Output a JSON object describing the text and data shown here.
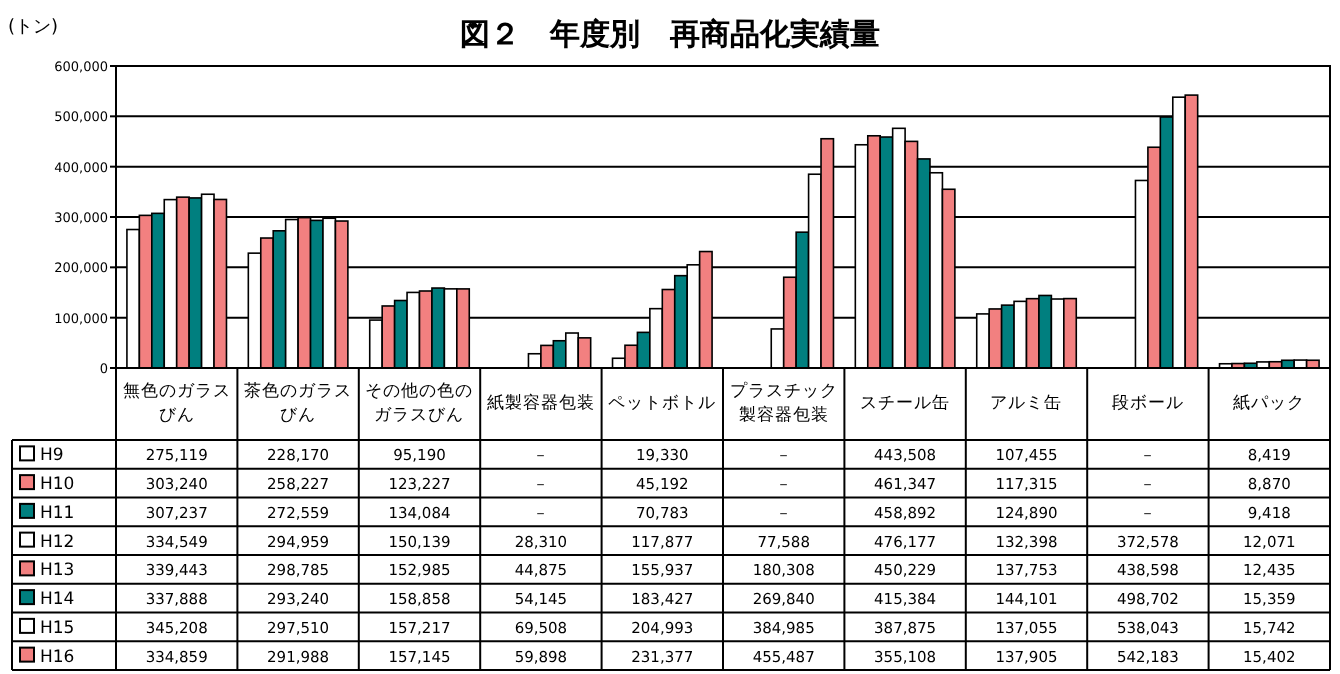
{
  "chart_data": {
    "type": "bar",
    "title": "図２　年度別　再商品化実績量",
    "ylabel": "(トン)",
    "categories": [
      "無色のガラスびん",
      "茶色のガラスびん",
      "その他の色のガラスびん",
      "紙製容器包装",
      "ペットボトル",
      "プラスチック製容器包装",
      "スチール缶",
      "アルミ缶",
      "段ボール",
      "紙パック"
    ],
    "ylim": [
      0,
      600000
    ],
    "yticks": [
      {
        "value": 0,
        "label": "0"
      },
      {
        "value": 100000,
        "label": "100,000"
      },
      {
        "value": 200000,
        "label": "200,000"
      },
      {
        "value": 300000,
        "label": "300,000"
      },
      {
        "value": 400000,
        "label": "400,000"
      },
      {
        "value": 500000,
        "label": "500,000"
      },
      {
        "value": 600000,
        "label": "600,000"
      }
    ],
    "grid": "y",
    "legend": "bottom",
    "series": [
      {
        "name": "H9",
        "color": "#ffffff",
        "values": [
          275119,
          228170,
          95190,
          null,
          19330,
          null,
          443508,
          107455,
          null,
          8419
        ],
        "value_labels": [
          "275,119",
          "228,170",
          "95,190",
          "－",
          "19,330",
          "－",
          "443,508",
          "107,455",
          "－",
          "8,419"
        ]
      },
      {
        "name": "H10",
        "color": "#f28080",
        "values": [
          303240,
          258227,
          123227,
          null,
          45192,
          null,
          461347,
          117315,
          null,
          8870
        ],
        "value_labels": [
          "303,240",
          "258,227",
          "123,227",
          "－",
          "45,192",
          "－",
          "461,347",
          "117,315",
          "－",
          "8,870"
        ]
      },
      {
        "name": "H11",
        "color": "#007f7f",
        "values": [
          307237,
          272559,
          134084,
          null,
          70783,
          null,
          458892,
          124890,
          null,
          9418
        ],
        "value_labels": [
          "307,237",
          "272,559",
          "134,084",
          "－",
          "70,783",
          "－",
          "458,892",
          "124,890",
          "－",
          "9,418"
        ]
      },
      {
        "name": "H12",
        "color": "#ffffff",
        "values": [
          334549,
          294959,
          150139,
          28310,
          117877,
          77588,
          476177,
          132398,
          372578,
          12071
        ],
        "value_labels": [
          "334,549",
          "294,959",
          "150,139",
          "28,310",
          "117,877",
          "77,588",
          "476,177",
          "132,398",
          "372,578",
          "12,071"
        ]
      },
      {
        "name": "H13",
        "color": "#f28080",
        "values": [
          339443,
          298785,
          152985,
          44875,
          155937,
          180308,
          450229,
          137753,
          438598,
          12435
        ],
        "value_labels": [
          "339,443",
          "298,785",
          "152,985",
          "44,875",
          "155,937",
          "180,308",
          "450,229",
          "137,753",
          "438,598",
          "12,435"
        ]
      },
      {
        "name": "H14",
        "color": "#007f7f",
        "values": [
          337888,
          293240,
          158858,
          54145,
          183427,
          269840,
          415384,
          144101,
          498702,
          15359
        ],
        "value_labels": [
          "337,888",
          "293,240",
          "158,858",
          "54,145",
          "183,427",
          "269,840",
          "415,384",
          "144,101",
          "498,702",
          "15,359"
        ]
      },
      {
        "name": "H15",
        "color": "#ffffff",
        "values": [
          345208,
          297510,
          157217,
          69508,
          204993,
          384985,
          387875,
          137055,
          538043,
          15742
        ],
        "value_labels": [
          "345,208",
          "297,510",
          "157,217",
          "69,508",
          "204,993",
          "384,985",
          "387,875",
          "137,055",
          "538,043",
          "15,742"
        ]
      },
      {
        "name": "H16",
        "color": "#f28080",
        "values": [
          334859,
          291988,
          157145,
          59898,
          231377,
          455487,
          355108,
          137905,
          542183,
          15402
        ],
        "value_labels": [
          "334,859",
          "291,988",
          "157,145",
          "59,898",
          "231,377",
          "455,487",
          "355,108",
          "137,905",
          "542,183",
          "15,402"
        ]
      }
    ]
  }
}
